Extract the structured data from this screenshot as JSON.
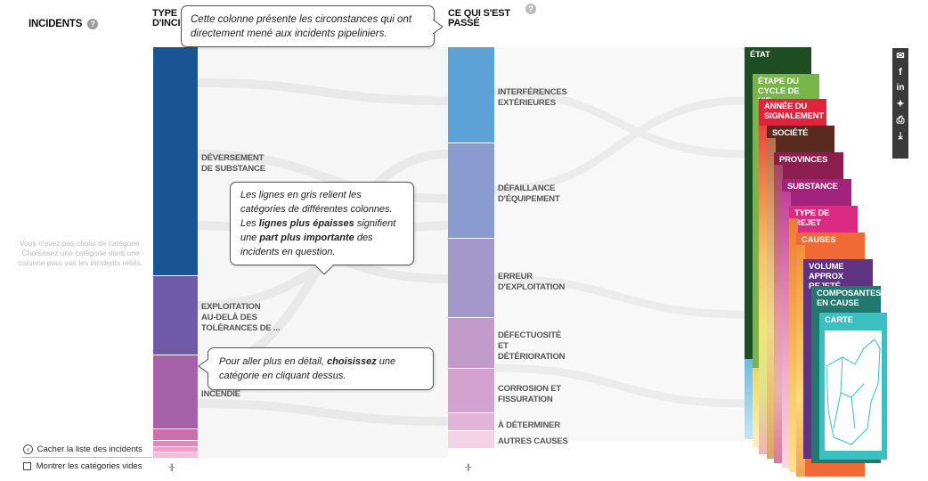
{
  "headers": {
    "incidents": "INCIDENTS",
    "type_line1": "TYPE",
    "type_line2": "D'INCI",
    "what_line1": "CE QUI S'EST",
    "what_line2": "PASSÉ",
    "help_glyph": "?"
  },
  "left_hint": "Vous n'avez pas choisi de catégorie. Choisissez une catégorie dans une colonne pour voir les incidents reliés.",
  "tooltips": {
    "top_line1": "Cette colonne présente les circonstances qui ont",
    "top_line2": "directement mené aux incidents pipeliniers.",
    "mid_p1": "Les lignes en gris relient les catégories de différentes colonnes. Les ",
    "mid_b1": "lignes plus épaisses",
    "mid_p2": " signifient une ",
    "mid_b2": "part plus importante",
    "mid_p3": " des incidents en question.",
    "bottom_p1": "Pour aller plus en détail, ",
    "bottom_b1": "choisissez",
    "bottom_p2": " une catégorie en cliquant dessus."
  },
  "type_categories": [
    {
      "label_l1": "DÉVERSEMENT",
      "label_l2": "DE SUBSTANCE",
      "label_l3": "",
      "color": "#1b5494"
    },
    {
      "label_l1": "EXPLOITATION",
      "label_l2": "AU-DELÀ DES",
      "label_l3": "TOLÉRANCES DE ...",
      "color": "#6e5aa6"
    },
    {
      "label_l1": "INCENDIE",
      "label_l2": "",
      "label_l3": "",
      "color": "#a562a8"
    }
  ],
  "what_categories": [
    {
      "label_l1": "INTERFÉRENCES",
      "label_l2": "EXTÉRIEURES",
      "label_l3": "",
      "color": "#5ca2d6"
    },
    {
      "label_l1": "DÉFAILLANCE",
      "label_l2": "D'ÉQUIPEMENT",
      "label_l3": "",
      "color": "#8a9bd0"
    },
    {
      "label_l1": "ERREUR",
      "label_l2": "D'EXPLOITATION",
      "label_l3": "",
      "color": "#a497c9"
    },
    {
      "label_l1": "DÉFECTUOSITÉ",
      "label_l2": "ET",
      "label_l3": "DÉTÉRIORATION",
      "color": "#c29bcb"
    },
    {
      "label_l1": "CORROSION ET",
      "label_l2": "FISSURATION",
      "label_l3": "",
      "color": "#d3a2cf"
    },
    {
      "label_l1": "À DÉTERMINER",
      "label_l2": "",
      "label_l3": "",
      "color": "#e2b5d8"
    },
    {
      "label_l1": "AUTRES CAUSES",
      "label_l2": "",
      "label_l3": "",
      "color": "#f2d3e3"
    }
  ],
  "cards": {
    "etat": "ÉTAT",
    "etape_l1": "ÉTAPE DU",
    "etape_l2": "CYCLE DE VIE",
    "annee_l1": "ANNÉE DU",
    "annee_l2": "SIGNALEMENT",
    "societe": "SOCIÉTÉ",
    "provinces": "PROVINCES",
    "substance": "SUBSTANCE",
    "type_rejet": "TYPE DE REJET",
    "causes": "CAUSES",
    "volume_l1": "VOLUME",
    "volume_l2": "APPROX REJETÉ",
    "composantes_l1": "COMPOSANTES",
    "composantes_l2": "EN CAUSE",
    "carte": "CARTE"
  },
  "card_colors": {
    "etat": "#1f4d22",
    "etape": "#7ab54b",
    "annee": "#e0243e",
    "societe": "#5a2a1f",
    "provinces": "#8c1e4f",
    "substance": "#a2237b",
    "type_rejet": "#dc2a83",
    "causes": "#ef6a34",
    "volume": "#5f3382",
    "composantes": "#20786e",
    "carte": "#3bbfc0"
  },
  "share_icons": [
    "mail-icon",
    "facebook-icon",
    "linkedin-icon",
    "twitter-icon",
    "print-icon",
    "download-icon"
  ],
  "bottom": {
    "hide_list": "Cacher la liste des incidents",
    "show_empty": "Montrer les catégories vides",
    "grip": "-||-"
  }
}
